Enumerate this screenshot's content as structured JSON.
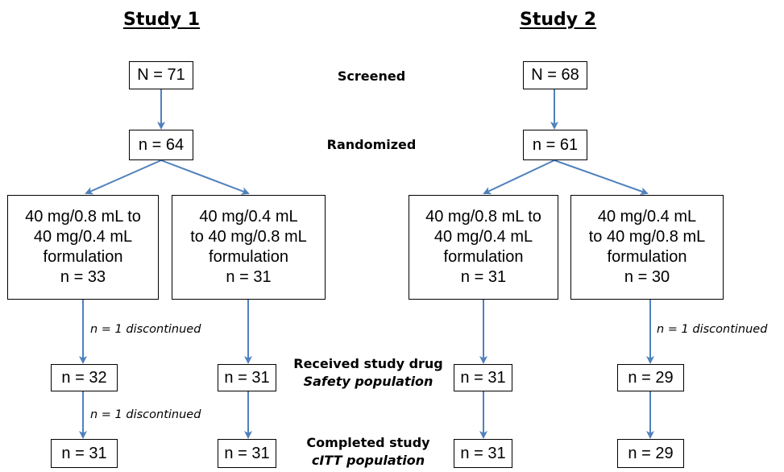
{
  "studies": [
    {
      "title": "Study 1",
      "screened": "N = 71",
      "randomized": "n = 64",
      "groups": [
        {
          "lines": [
            "40 mg/0.8 mL to",
            "40 mg/0.4 mL",
            "formulation",
            "n = 33"
          ],
          "discontinued_1": "n = 1 discontinued",
          "received": "n = 32",
          "discontinued_2": "n = 1 discontinued",
          "completed": "n = 31"
        },
        {
          "lines": [
            "40 mg/0.4 mL",
            "to 40 mg/0.8 mL",
            "formulation",
            "n = 31"
          ],
          "received": "n = 31",
          "completed": "n = 31"
        }
      ]
    },
    {
      "title": "Study 2",
      "screened": "N = 68",
      "randomized": "n = 61",
      "groups": [
        {
          "lines": [
            "40 mg/0.8 mL to",
            "40 mg/0.4 mL",
            "formulation",
            "n = 31"
          ],
          "received": "n = 31",
          "completed": "n = 31"
        },
        {
          "lines": [
            "40 mg/0.4 mL",
            "to 40 mg/0.8 mL",
            "formulation",
            "n = 30"
          ],
          "discontinued_1": "n = 1 discontinued",
          "received": "n = 29",
          "completed": "n = 29"
        }
      ]
    }
  ],
  "stages": {
    "screened": "Screened",
    "randomized": "Randomized",
    "received": "Received study drug",
    "safety": "Safety population",
    "completed": "Completed study",
    "citt": "cITT population"
  },
  "colors": {
    "arrow": "#4f81bd",
    "box_border": "#000000"
  }
}
